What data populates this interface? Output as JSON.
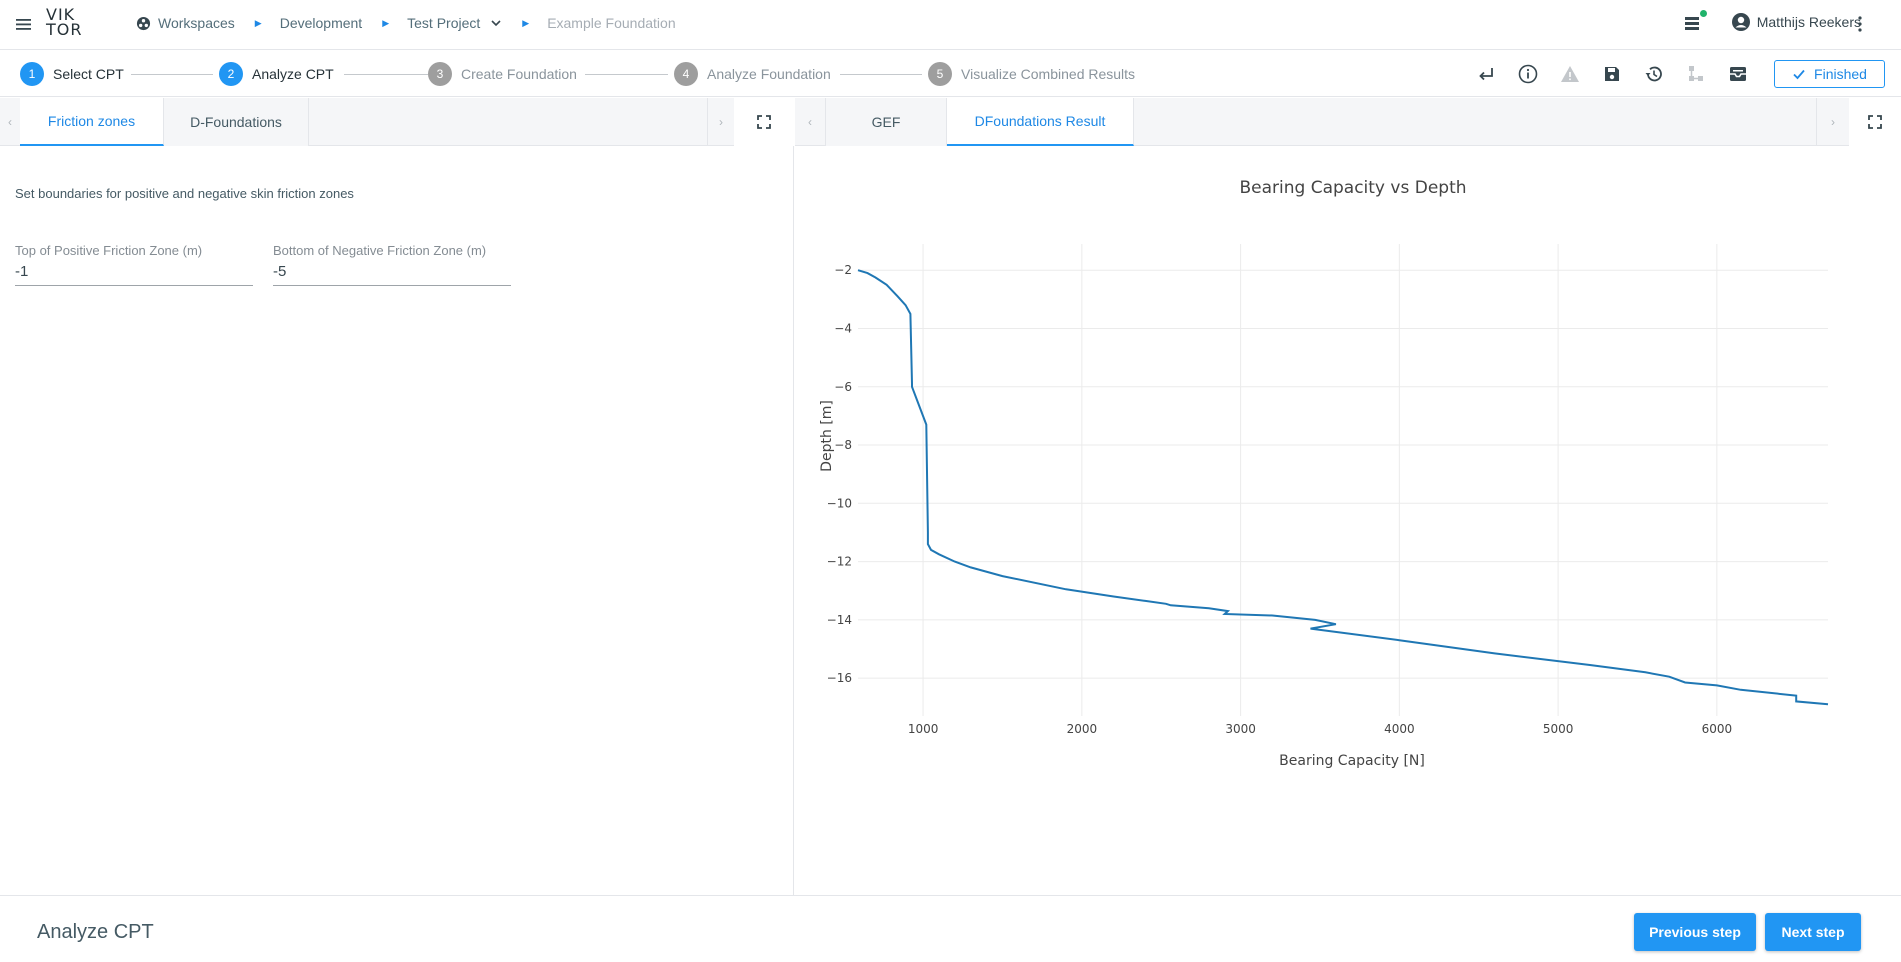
{
  "app": {
    "logo": "VIK TOR"
  },
  "breadcrumb": [
    {
      "label": "Workspaces",
      "icon": "workspace-icon"
    },
    {
      "label": "Development"
    },
    {
      "label": "Test Project",
      "has_dropdown": true
    },
    {
      "label": "Example Foundation"
    }
  ],
  "user": {
    "name": "Matthijs Reekers"
  },
  "steps": [
    {
      "num": "1",
      "label": "Select CPT",
      "active": true
    },
    {
      "num": "2",
      "label": "Analyze CPT",
      "active": true
    },
    {
      "num": "3",
      "label": "Create Foundation",
      "active": false
    },
    {
      "num": "4",
      "label": "Analyze Foundation",
      "active": false
    },
    {
      "num": "5",
      "label": "Visualize Combined Results",
      "active": false
    }
  ],
  "toolbar": {
    "icons": [
      "return-icon",
      "info-icon",
      "warning-icon",
      "save-icon",
      "history-icon",
      "flow-icon",
      "inbox-icon"
    ],
    "finished_label": "Finished"
  },
  "left_panel": {
    "tabs": [
      {
        "label": "Friction zones",
        "active": true
      },
      {
        "label": "D-Foundations",
        "active": false
      }
    ],
    "description": "Set boundaries for positive and negative skin friction zones",
    "fields": {
      "top_positive": {
        "label": "Top of Positive Friction Zone (m)",
        "value": "-1"
      },
      "bottom_negative": {
        "label": "Bottom of Negative Friction Zone (m)",
        "value": "-5"
      }
    }
  },
  "right_panel": {
    "tabs": [
      {
        "label": "GEF",
        "active": false
      },
      {
        "label": "DFoundations Result",
        "active": true
      }
    ]
  },
  "chart_data": {
    "type": "line",
    "title": "Bearing Capacity vs Depth",
    "xlabel": "Bearing Capacity [N]",
    "ylabel": "Depth [m]",
    "xlim": [
      590,
      6700
    ],
    "ylim": [
      -17.3,
      -1.1
    ],
    "xticks": [
      1000,
      2000,
      3000,
      4000,
      5000,
      6000
    ],
    "yticks": [
      -2,
      -4,
      -6,
      -8,
      -10,
      -12,
      -14,
      -16
    ],
    "grid": true,
    "line_color": "#1f77b4",
    "series": [
      {
        "x": [
          590,
          650,
          700,
          770,
          840,
          890,
          920,
          930,
          930,
          1020,
          1030,
          1030,
          1050,
          1100,
          1200,
          1300,
          1500,
          1900,
          2200,
          2400,
          2530,
          2560,
          2800,
          2920,
          2900,
          3200,
          3470,
          3600,
          3440,
          4000,
          4600,
          5200,
          5550,
          5700,
          5800,
          6000,
          6150,
          6500,
          6500,
          6700
        ],
        "y": [
          -2.0,
          -2.1,
          -2.25,
          -2.5,
          -2.9,
          -3.2,
          -3.5,
          -5.9,
          -6.0,
          -7.3,
          -11.0,
          -11.4,
          -11.6,
          -11.75,
          -12.0,
          -12.2,
          -12.5,
          -12.95,
          -13.2,
          -13.35,
          -13.45,
          -13.5,
          -13.6,
          -13.7,
          -13.8,
          -13.85,
          -14.0,
          -14.15,
          -14.3,
          -14.7,
          -15.15,
          -15.55,
          -15.8,
          -15.95,
          -16.15,
          -16.25,
          -16.4,
          -16.6,
          -16.8,
          -16.9
        ]
      }
    ]
  },
  "footer": {
    "title": "Analyze CPT",
    "prev_label": "Previous step",
    "next_label": "Next step"
  }
}
